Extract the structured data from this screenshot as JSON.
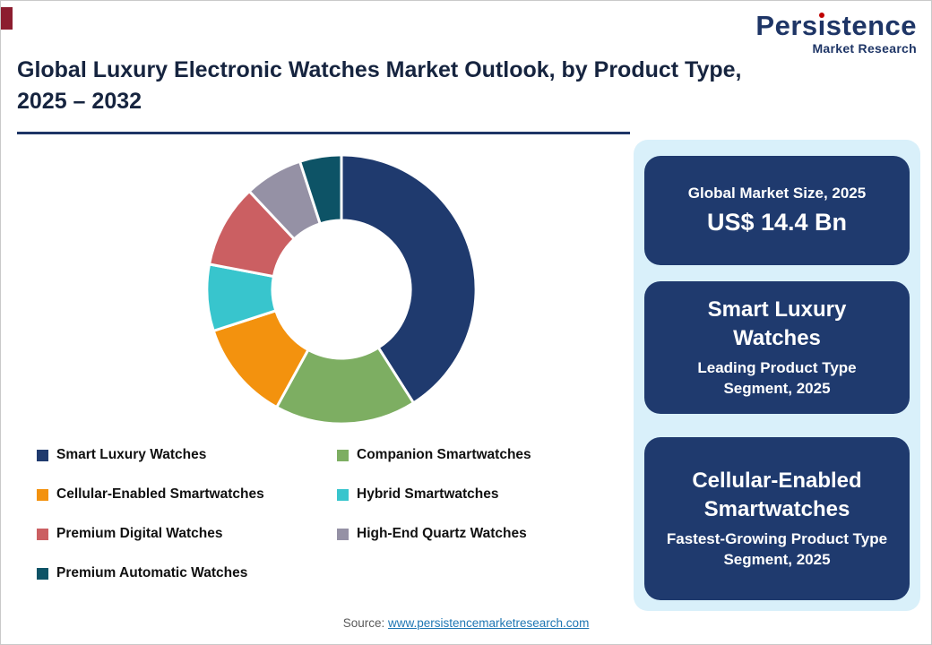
{
  "logo": {
    "name": "Persistence",
    "tagline": "Market Research",
    "dot_color": "#C00000",
    "text_color": "#1E3566"
  },
  "header": {
    "title_line1": "Global Luxury Electronic Watches Market Outlook, by Product Type,",
    "title_line2": "2025 – 2032"
  },
  "chart_data": {
    "type": "pie",
    "subtype": "donut",
    "title": "Global Luxury Electronic Watches Market Outlook, by Product Type, 2025 – 2032",
    "categories": [
      "Smart Luxury Watches",
      "Companion Smartwatches",
      "Cellular-Enabled Smartwatches",
      "Hybrid Smartwatches",
      "Premium Digital Watches",
      "High-End Quartz Watches",
      "Premium Automatic Watches"
    ],
    "values": [
      41,
      17,
      12,
      8,
      10,
      7,
      5
    ],
    "values_unit": "percent share (estimated from arc angles; no data labels shown)",
    "colors": [
      "#1F3A6E",
      "#7DAE62",
      "#F3920E",
      "#38C5CD",
      "#CB5F62",
      "#9591A5",
      "#0D5366"
    ],
    "start_angle_deg": 0,
    "direction": "clockwise",
    "inner_radius_ratio": 0.51,
    "legend_position": "bottom-left, two columns",
    "slice_separator_color": "#ffffff"
  },
  "highlights": {
    "panel_bg": "#D9F0FA",
    "box_bg": "#1F3A6E",
    "boxes": [
      {
        "title": "Global Market Size, 2025",
        "value": "US$ 14.4 Bn"
      },
      {
        "title": "Smart Luxury Watches",
        "subtitle": "Leading Product Type Segment, 2025"
      },
      {
        "title": "Cellular-Enabled Smartwatches",
        "subtitle": "Fastest-Growing Product Type Segment, 2025"
      }
    ]
  },
  "footer": {
    "source_label": "Source:",
    "source_link": "www.persistencemarketresearch.com"
  }
}
